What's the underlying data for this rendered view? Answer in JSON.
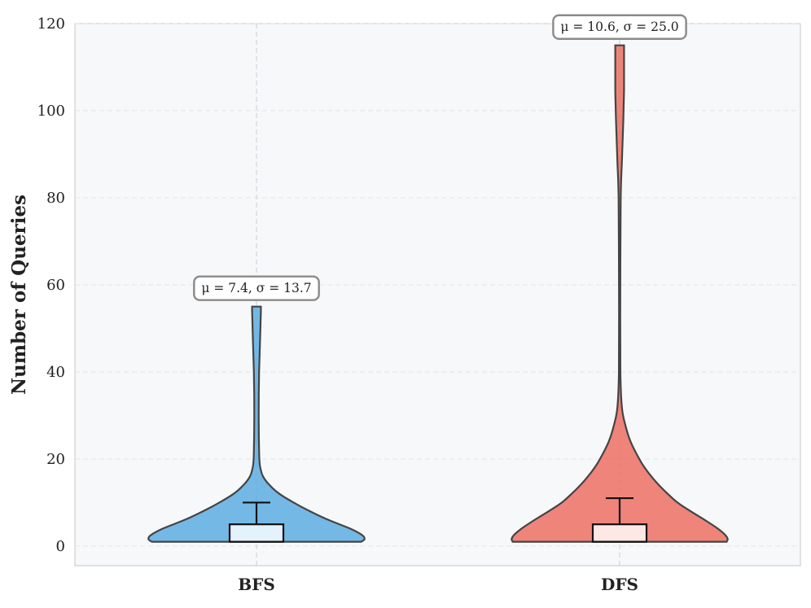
{
  "chart_data": {
    "type": "violin",
    "title": "",
    "xlabel": "",
    "ylabel": "Number of Queries",
    "ylim": [
      -4.5,
      120
    ],
    "yticks": [
      0,
      20,
      40,
      60,
      80,
      100,
      120
    ],
    "ytick_labels": [
      "0",
      "20",
      "40",
      "60",
      "80",
      "100",
      "120"
    ],
    "categories": [
      "BFS",
      "DFS"
    ],
    "grid": true,
    "colors": {
      "BFS": "#5dade2",
      "DFS": "#ec7063",
      "BFS_box": "#e3f2fb",
      "DFS_box": "#fde8e6",
      "background": "#f7f8fa",
      "outline": "#444444"
    },
    "series": [
      {
        "category": "BFS",
        "min": 1,
        "max": 55,
        "q1": 1,
        "median": 1,
        "q3": 5,
        "whisker_high": 10,
        "stats_label": "μ = 7.4, σ = 13.7",
        "density": [
          [
            1,
            0.96
          ],
          [
            1.6,
            0.99
          ],
          [
            2.5,
            0.97
          ],
          [
            4,
            0.86
          ],
          [
            6,
            0.66
          ],
          [
            8,
            0.49
          ],
          [
            10,
            0.34
          ],
          [
            12,
            0.21
          ],
          [
            14,
            0.12
          ],
          [
            16,
            0.06
          ],
          [
            18,
            0.035
          ],
          [
            20,
            0.026
          ],
          [
            25,
            0.022
          ],
          [
            30,
            0.02
          ],
          [
            35,
            0.021
          ],
          [
            40,
            0.024
          ],
          [
            45,
            0.03
          ],
          [
            50,
            0.036
          ],
          [
            54,
            0.04
          ],
          [
            55,
            0.04
          ]
        ]
      },
      {
        "category": "DFS",
        "min": 1,
        "max": 115,
        "q1": 1,
        "median": 1,
        "q3": 5,
        "whisker_high": 11,
        "stats_label": "μ = 10.6, σ = 25.0",
        "density": [
          [
            1,
            0.98
          ],
          [
            1.6,
            0.99
          ],
          [
            2.5,
            0.97
          ],
          [
            4,
            0.9
          ],
          [
            6,
            0.78
          ],
          [
            8,
            0.65
          ],
          [
            10,
            0.53
          ],
          [
            12,
            0.44
          ],
          [
            14,
            0.36
          ],
          [
            16,
            0.29
          ],
          [
            18,
            0.23
          ],
          [
            20,
            0.18
          ],
          [
            24,
            0.1
          ],
          [
            28,
            0.05
          ],
          [
            32,
            0.02
          ],
          [
            40,
            0.007
          ],
          [
            60,
            0.006
          ],
          [
            80,
            0.01
          ],
          [
            88,
            0.02
          ],
          [
            95,
            0.03
          ],
          [
            100,
            0.036
          ],
          [
            105,
            0.04
          ],
          [
            110,
            0.04
          ],
          [
            115,
            0.04
          ]
        ]
      }
    ]
  }
}
